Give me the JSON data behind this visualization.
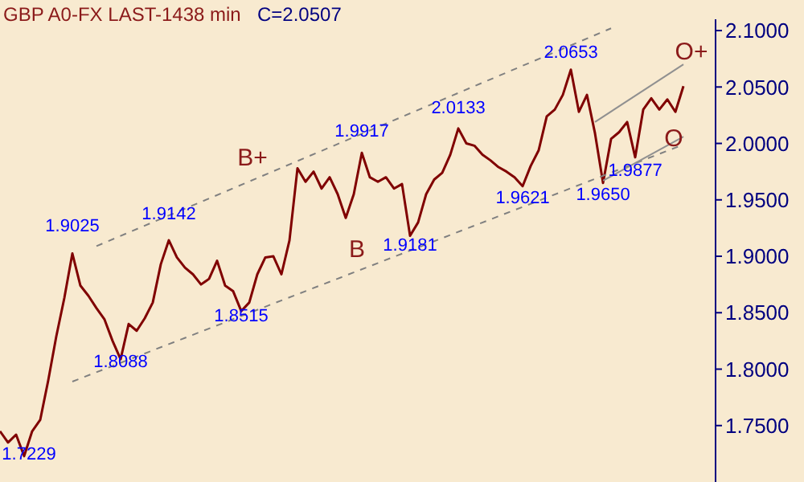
{
  "chart_data": {
    "type": "line",
    "title": "GBP A0-FX LAST-1438 min",
    "subtitle": "C=2.0507",
    "categories": [
      null,
      null,
      null,
      null,
      null,
      null,
      null,
      null,
      null,
      null,
      null,
      null,
      null,
      null,
      null,
      null,
      null,
      null,
      null,
      null,
      null,
      null,
      null,
      null,
      null,
      null,
      null,
      null,
      null,
      null,
      null,
      null,
      null,
      null,
      null,
      null,
      null,
      null,
      null,
      null,
      null,
      null,
      null,
      null,
      null,
      null,
      null,
      null,
      null,
      null,
      null,
      null,
      null,
      null,
      null,
      null,
      null,
      null,
      null,
      null,
      null,
      null,
      null,
      null,
      null,
      null,
      null,
      null,
      null,
      null,
      null,
      null,
      null,
      null,
      null,
      null,
      null,
      null,
      null,
      null,
      null,
      null,
      null,
      null,
      null,
      null
    ],
    "series": [
      {
        "color": "#800000",
        "values": [
          1.745,
          1.735,
          1.742,
          1.7229,
          1.745,
          1.755,
          1.79,
          1.829,
          1.863,
          1.9025,
          1.874,
          1.865,
          1.854,
          1.844,
          1.825,
          1.8088,
          1.84,
          1.834,
          1.845,
          1.859,
          1.893,
          1.9142,
          1.899,
          1.89,
          1.884,
          1.875,
          1.88,
          1.896,
          1.874,
          1.869,
          1.8515,
          1.859,
          1.884,
          1.899,
          1.9,
          1.884,
          1.914,
          1.978,
          1.966,
          1.975,
          1.96,
          1.97,
          1.955,
          1.934,
          1.955,
          1.9917,
          1.97,
          1.966,
          1.97,
          1.96,
          1.964,
          1.9181,
          1.93,
          1.955,
          1.968,
          1.974,
          1.99,
          2.0133,
          2.0,
          1.998,
          1.99,
          1.985,
          1.979,
          1.975,
          1.97,
          1.9621,
          1.98,
          1.994,
          2.024,
          2.03,
          2.043,
          2.0653,
          2.028,
          2.043,
          2.009,
          1.965,
          2.004,
          2.01,
          2.019,
          1.9877,
          2.03,
          2.04,
          2.03,
          2.039,
          2.028,
          2.0507
        ]
      },
      {
        "color": "#808080",
        "line_style": "dashed",
        "values": [
          null,
          null,
          null,
          null,
          null,
          null,
          null,
          null,
          null,
          null,
          null,
          null,
          1.909,
          null,
          null,
          null,
          null,
          null,
          null,
          null,
          null,
          null,
          null,
          null,
          null,
          null,
          null,
          null,
          null,
          null,
          null,
          null,
          null,
          null,
          null,
          null,
          null,
          null,
          null,
          null,
          null,
          null,
          null,
          null,
          null,
          null,
          null,
          null,
          null,
          null,
          null,
          null,
          null,
          null,
          null,
          null,
          null,
          null,
          null,
          null,
          null,
          null,
          null,
          null,
          null,
          null,
          null,
          null,
          null,
          null,
          null,
          null,
          null,
          null,
          null,
          null,
          2.102,
          null,
          null,
          null,
          null,
          null,
          null,
          null,
          null,
          null
        ]
      },
      {
        "color": "#808080",
        "line_style": "dashed",
        "values": [
          null,
          null,
          null,
          null,
          null,
          null,
          null,
          null,
          null,
          1.789,
          null,
          null,
          null,
          null,
          null,
          null,
          null,
          null,
          null,
          null,
          null,
          null,
          null,
          null,
          null,
          null,
          null,
          null,
          null,
          null,
          null,
          null,
          null,
          null,
          null,
          null,
          null,
          null,
          null,
          null,
          null,
          null,
          null,
          null,
          null,
          null,
          null,
          null,
          null,
          null,
          null,
          null,
          null,
          null,
          null,
          null,
          null,
          null,
          null,
          null,
          null,
          null,
          null,
          null,
          null,
          null,
          null,
          null,
          null,
          null,
          null,
          null,
          null,
          null,
          null,
          null,
          null,
          null,
          null,
          null,
          null,
          null,
          null,
          null,
          null,
          1.999
        ]
      },
      {
        "color": "#909090",
        "line_style": "solid",
        "values": [
          null,
          null,
          null,
          null,
          null,
          null,
          null,
          null,
          null,
          null,
          null,
          null,
          null,
          null,
          null,
          null,
          null,
          null,
          null,
          null,
          null,
          null,
          null,
          null,
          null,
          null,
          null,
          null,
          null,
          null,
          null,
          null,
          null,
          null,
          null,
          null,
          null,
          null,
          null,
          null,
          null,
          null,
          null,
          null,
          null,
          null,
          null,
          null,
          null,
          null,
          null,
          null,
          null,
          null,
          null,
          null,
          null,
          null,
          null,
          null,
          null,
          null,
          null,
          null,
          null,
          null,
          null,
          null,
          null,
          null,
          null,
          null,
          null,
          null,
          2.019,
          null,
          null,
          null,
          null,
          null,
          null,
          null,
          null,
          null,
          null,
          2.07
        ]
      },
      {
        "color": "#909090",
        "line_style": "solid",
        "values": [
          null,
          null,
          null,
          null,
          null,
          null,
          null,
          null,
          null,
          null,
          null,
          null,
          null,
          null,
          null,
          null,
          null,
          null,
          null,
          null,
          null,
          null,
          null,
          null,
          null,
          null,
          null,
          null,
          null,
          null,
          null,
          null,
          null,
          null,
          null,
          null,
          null,
          null,
          null,
          null,
          null,
          null,
          null,
          null,
          null,
          null,
          null,
          null,
          null,
          null,
          null,
          null,
          null,
          null,
          null,
          null,
          null,
          null,
          null,
          null,
          null,
          null,
          null,
          null,
          null,
          null,
          null,
          null,
          null,
          null,
          null,
          null,
          null,
          null,
          null,
          1.967,
          null,
          null,
          null,
          null,
          null,
          null,
          null,
          null,
          null,
          2.006
        ]
      }
    ],
    "ylim": [
      1.7,
      2.11
    ],
    "yticks": [
      {
        "value": 1.75,
        "label": "1.7500"
      },
      {
        "value": 1.8,
        "label": "1.8000"
      },
      {
        "value": 1.85,
        "label": "1.8500"
      },
      {
        "value": 1.9,
        "label": "1.9000"
      },
      {
        "value": 1.95,
        "label": "1.9500"
      },
      {
        "value": 2.0,
        "label": "2.0000"
      },
      {
        "value": 2.05,
        "label": "2.0500"
      },
      {
        "value": 2.1,
        "label": "2.1000"
      }
    ],
    "tick_labels": "y",
    "annotations": [
      {
        "text": "1.7229",
        "y": 1.7229
      },
      {
        "text": "1.9025",
        "y": 1.9025
      },
      {
        "text": "1.8088",
        "y": 1.8088
      },
      {
        "text": "1.9142",
        "y": 1.9142
      },
      {
        "text": "1.8515",
        "y": 1.8515
      },
      {
        "text": "1.9917",
        "y": 1.9917
      },
      {
        "text": "1.9181",
        "y": 1.9181
      },
      {
        "text": "2.0133",
        "y": 2.0133
      },
      {
        "text": "1.9621",
        "y": 1.9621
      },
      {
        "text": "2.0653",
        "y": 2.0653
      },
      {
        "text": "1.9650",
        "y": 1.965
      },
      {
        "text": "1.9877",
        "y": 1.9877
      },
      "B+",
      "B",
      "O+",
      "O"
    ]
  }
}
